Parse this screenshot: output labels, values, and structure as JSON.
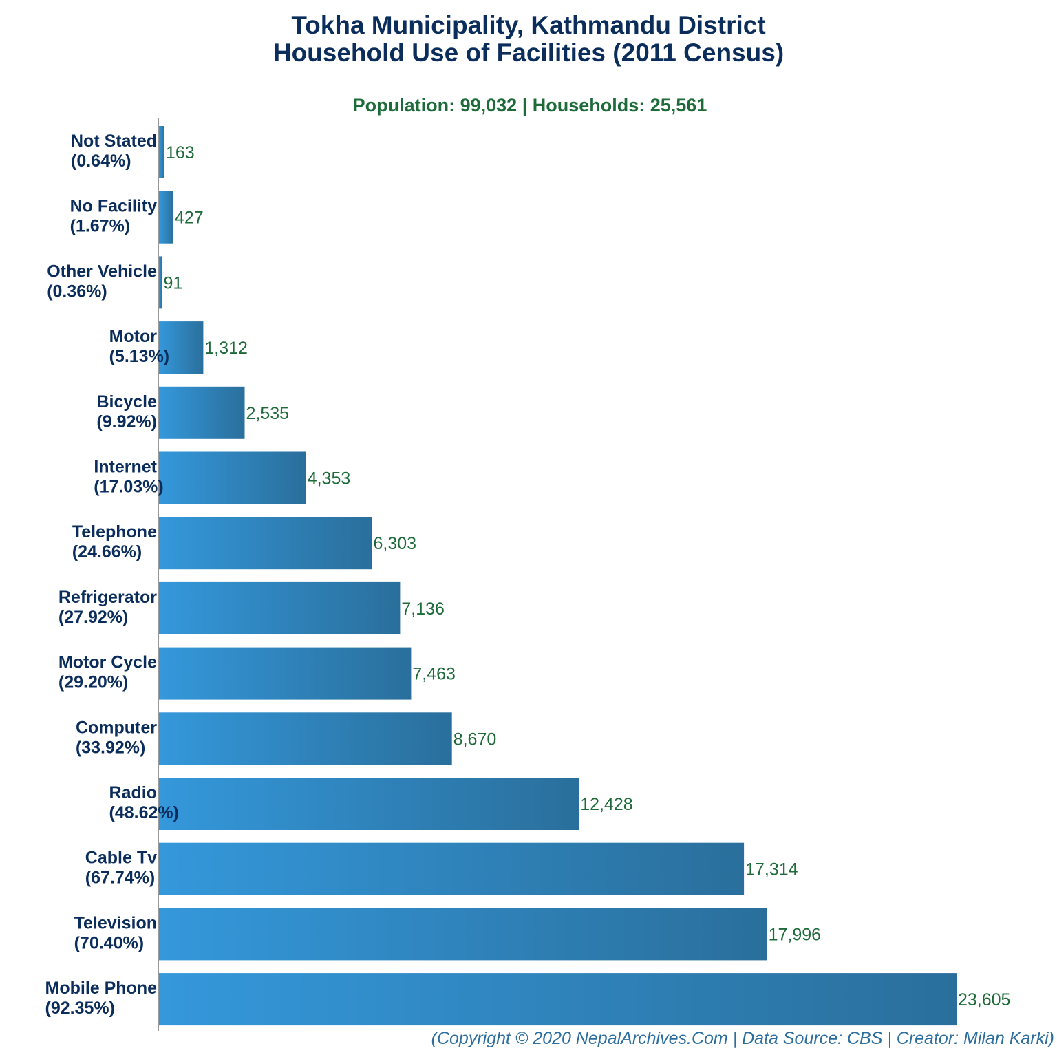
{
  "chart_data": {
    "type": "bar",
    "orientation": "horizontal",
    "title_line1": "Tokha Municipality, Kathmandu District",
    "title_line2": "Household Use of Facilities (2011 Census)",
    "subtitle": "Population: 99,032 | Households: 25,561",
    "footer": "(Copyright © 2020 NepalArchives.Com | Data Source: CBS | Creator: Milan Karki)",
    "xlim": [
      0,
      23605
    ],
    "categories": [
      {
        "name": "Not Stated",
        "pct": "(0.64%)",
        "value": 163,
        "label": "163"
      },
      {
        "name": "No Facility",
        "pct": "(1.67%)",
        "value": 427,
        "label": "427"
      },
      {
        "name": "Other Vehicle",
        "pct": "(0.36%)",
        "value": 91,
        "label": "91"
      },
      {
        "name": "Motor",
        "pct": "(5.13%)",
        "value": 1312,
        "label": "1,312"
      },
      {
        "name": "Bicycle",
        "pct": "(9.92%)",
        "value": 2535,
        "label": "2,535"
      },
      {
        "name": "Internet",
        "pct": "(17.03%)",
        "value": 4353,
        "label": "4,353"
      },
      {
        "name": "Telephone",
        "pct": "(24.66%)",
        "value": 6303,
        "label": "6,303"
      },
      {
        "name": "Refrigerator",
        "pct": "(27.92%)",
        "value": 7136,
        "label": "7,136"
      },
      {
        "name": "Motor Cycle",
        "pct": "(29.20%)",
        "value": 7463,
        "label": "7,463"
      },
      {
        "name": "Computer",
        "pct": "(33.92%)",
        "value": 8670,
        "label": "8,670"
      },
      {
        "name": "Radio",
        "pct": "(48.62%)",
        "value": 12428,
        "label": "12,428"
      },
      {
        "name": "Cable Tv",
        "pct": "(67.74%)",
        "value": 17314,
        "label": "17,314"
      },
      {
        "name": "Television",
        "pct": "(70.40%)",
        "value": 17996,
        "label": "17,996"
      },
      {
        "name": "Mobile Phone",
        "pct": "(92.35%)",
        "value": 23605,
        "label": "23,605"
      }
    ],
    "colors": {
      "bar_start": "#3498db",
      "bar_end": "#2a6f9c",
      "value_text": "#1e6b3a",
      "category_text": "#0b2d5b"
    }
  }
}
